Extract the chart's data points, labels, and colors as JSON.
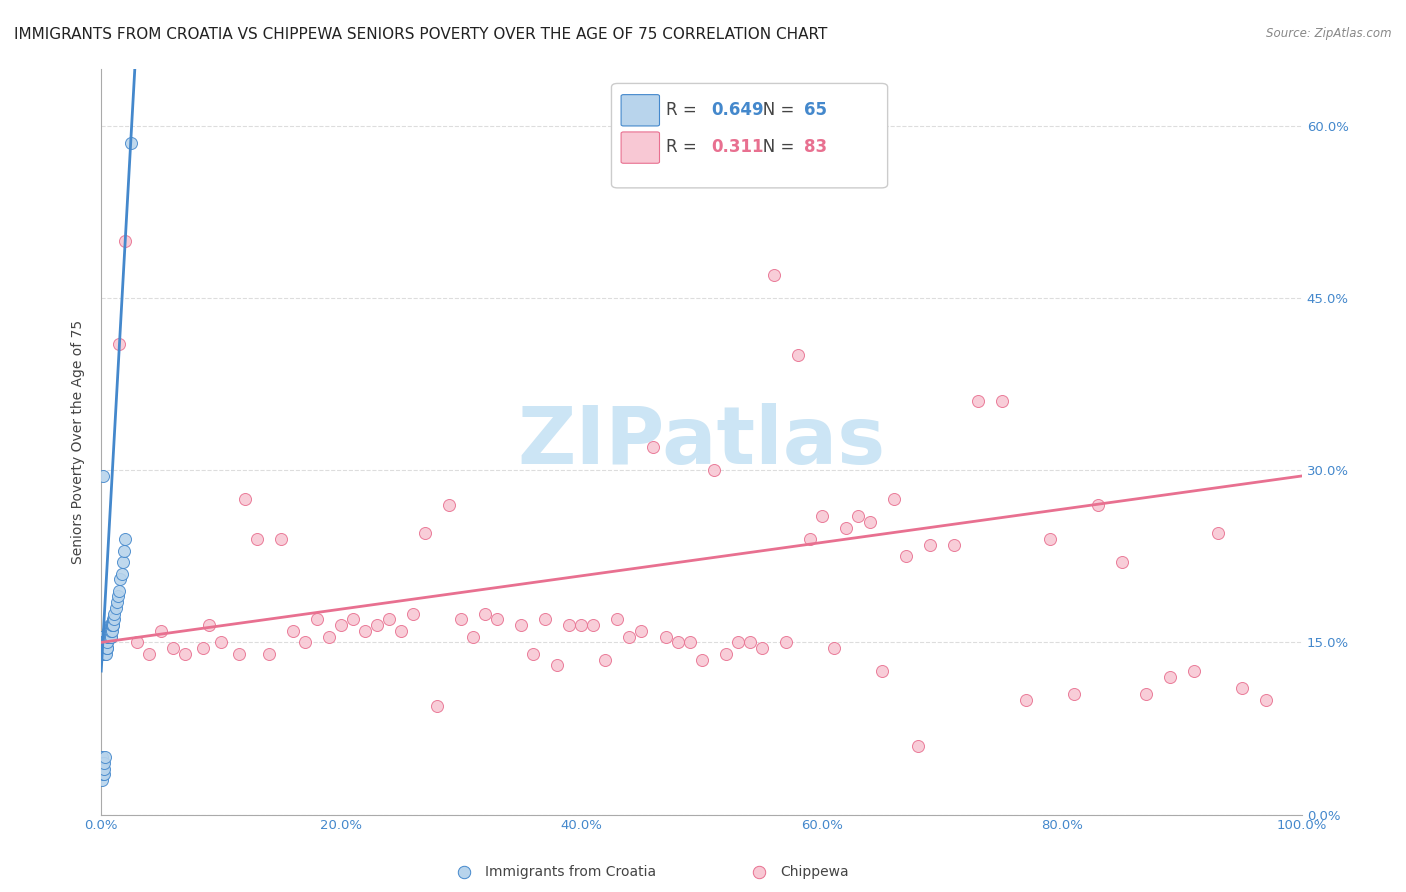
{
  "title": "IMMIGRANTS FROM CROATIA VS CHIPPEWA SENIORS POVERTY OVER THE AGE OF 75 CORRELATION CHART",
  "source": "Source: ZipAtlas.com",
  "ylabel": "Seniors Poverty Over the Age of 75",
  "blue_R": 0.649,
  "blue_N": 65,
  "pink_R": 0.311,
  "pink_N": 83,
  "blue_label": "Immigrants from Croatia",
  "pink_label": "Chippewa",
  "blue_color": "#b8d4ec",
  "blue_line_color": "#4488cc",
  "pink_color": "#f8c8d4",
  "pink_line_color": "#e87090",
  "watermark": "ZIPatlas",
  "watermark_color": "#cce5f5",
  "blue_scatter_x": [
    0.05,
    0.08,
    0.1,
    0.12,
    0.15,
    0.18,
    0.2,
    0.22,
    0.25,
    0.28,
    0.3,
    0.32,
    0.35,
    0.38,
    0.4,
    0.42,
    0.45,
    0.48,
    0.5,
    0.52,
    0.55,
    0.58,
    0.6,
    0.62,
    0.65,
    0.68,
    0.7,
    0.72,
    0.75,
    0.78,
    0.8,
    0.82,
    0.85,
    0.88,
    0.9,
    0.92,
    0.95,
    0.98,
    1.0,
    1.05,
    1.1,
    1.2,
    1.3,
    1.4,
    1.5,
    1.6,
    1.7,
    1.8,
    1.9,
    2.0,
    0.03,
    0.04,
    0.06,
    0.07,
    0.09,
    0.11,
    0.13,
    0.16,
    0.19,
    0.21,
    0.24,
    0.27,
    0.33,
    2.5,
    0.14
  ],
  "blue_scatter_y": [
    15.5,
    15.0,
    14.5,
    15.0,
    14.5,
    14.5,
    14.0,
    14.5,
    15.0,
    14.5,
    15.0,
    14.0,
    14.5,
    15.0,
    14.5,
    14.0,
    14.5,
    15.0,
    14.5,
    15.0,
    15.5,
    15.5,
    16.0,
    15.5,
    15.5,
    16.0,
    16.5,
    15.5,
    16.0,
    16.5,
    16.0,
    15.5,
    16.0,
    16.5,
    16.0,
    16.5,
    16.5,
    17.0,
    16.5,
    17.0,
    17.5,
    18.0,
    18.5,
    19.0,
    19.5,
    20.5,
    21.0,
    22.0,
    23.0,
    24.0,
    5.0,
    4.5,
    4.0,
    3.5,
    3.0,
    3.5,
    4.0,
    4.5,
    4.0,
    3.5,
    4.0,
    4.5,
    5.0,
    58.5,
    29.5
  ],
  "pink_scatter_x": [
    0.8,
    1.5,
    3.0,
    5.0,
    7.0,
    8.5,
    10.0,
    11.5,
    13.0,
    15.0,
    17.0,
    19.0,
    21.0,
    23.0,
    25.0,
    27.0,
    29.0,
    31.0,
    33.0,
    35.0,
    37.0,
    39.0,
    41.0,
    43.0,
    45.0,
    47.0,
    49.0,
    51.0,
    53.0,
    55.0,
    57.0,
    59.0,
    61.0,
    63.0,
    65.0,
    67.0,
    69.0,
    71.0,
    73.0,
    75.0,
    77.0,
    79.0,
    81.0,
    83.0,
    85.0,
    87.0,
    89.0,
    91.0,
    93.0,
    95.0,
    2.0,
    4.0,
    6.0,
    9.0,
    12.0,
    14.0,
    16.0,
    18.0,
    20.0,
    22.0,
    24.0,
    26.0,
    28.0,
    30.0,
    32.0,
    36.0,
    38.0,
    40.0,
    42.0,
    44.0,
    46.0,
    48.0,
    50.0,
    52.0,
    54.0,
    56.0,
    58.0,
    60.0,
    62.0,
    64.0,
    66.0,
    68.0,
    97.0
  ],
  "pink_scatter_y": [
    15.5,
    41.0,
    15.0,
    16.0,
    14.0,
    14.5,
    15.0,
    14.0,
    24.0,
    24.0,
    15.0,
    15.5,
    17.0,
    16.5,
    16.0,
    24.5,
    27.0,
    15.5,
    17.0,
    16.5,
    17.0,
    16.5,
    16.5,
    17.0,
    16.0,
    15.5,
    15.0,
    30.0,
    15.0,
    14.5,
    15.0,
    24.0,
    14.5,
    26.0,
    12.5,
    22.5,
    23.5,
    23.5,
    36.0,
    36.0,
    10.0,
    24.0,
    10.5,
    27.0,
    22.0,
    10.5,
    12.0,
    12.5,
    24.5,
    11.0,
    50.0,
    14.0,
    14.5,
    16.5,
    27.5,
    14.0,
    16.0,
    17.0,
    16.5,
    16.0,
    17.0,
    17.5,
    9.5,
    17.0,
    17.5,
    14.0,
    13.0,
    16.5,
    13.5,
    15.5,
    32.0,
    15.0,
    13.5,
    14.0,
    15.0,
    47.0,
    40.0,
    26.0,
    25.0,
    25.5,
    27.5,
    6.0,
    10.0
  ],
  "xlim": [
    0,
    100
  ],
  "ylim": [
    0,
    65
  ],
  "xticks": [
    0,
    20,
    40,
    60,
    80,
    100
  ],
  "xtick_labels": [
    "0.0%",
    "20.0%",
    "40.0%",
    "60.0%",
    "80.0%",
    "100.0%"
  ],
  "yticks": [
    0,
    15,
    30,
    45,
    60
  ],
  "ytick_labels": [
    "0.0%",
    "15.0%",
    "30.0%",
    "45.0%",
    "60.0%"
  ],
  "grid_color": "#dddddd",
  "title_fontsize": 11,
  "axis_label_fontsize": 10,
  "tick_fontsize": 9.5,
  "legend_fontsize": 12,
  "blue_trend_x0": 0.0,
  "blue_trend_x1": 2.8,
  "blue_trend_y0": 12.5,
  "blue_trend_y1": 65.0,
  "pink_trend_x0": 0.0,
  "pink_trend_x1": 100.0,
  "pink_trend_y0": 15.0,
  "pink_trend_y1": 29.5
}
